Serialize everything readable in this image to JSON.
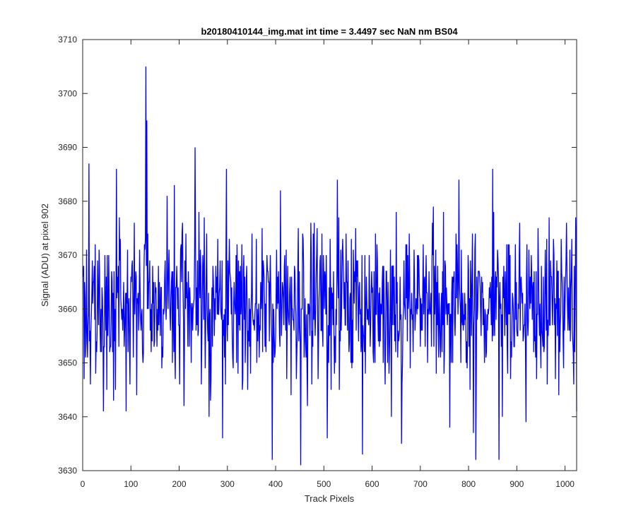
{
  "chart_data": {
    "type": "line",
    "title": "b20180410144_img.mat int time = 3.4497 sec  NaN nm BS04",
    "xlabel": "Track Pixels",
    "ylabel": "Signal (ADU) at pixel 902",
    "xlim": [
      0,
      1024
    ],
    "ylim": [
      3630,
      3710
    ],
    "xticks": [
      0,
      100,
      200,
      300,
      400,
      500,
      600,
      700,
      800,
      900,
      1000
    ],
    "yticks": [
      3630,
      3640,
      3650,
      3660,
      3670,
      3680,
      3690,
      3700,
      3710
    ],
    "grid": false,
    "series": [
      {
        "color": "#0000ff",
        "x_start": 1,
        "x_step": 1,
        "noise_baseline": 3661,
        "noise_amplitude": 7,
        "n_points": 1024,
        "notable_points": [
          {
            "x": 10,
            "y": 3651
          },
          {
            "x": 13,
            "y": 3687
          },
          {
            "x": 43,
            "y": 3641
          },
          {
            "x": 50,
            "y": 3645
          },
          {
            "x": 70,
            "y": 3686
          },
          {
            "x": 90,
            "y": 3641
          },
          {
            "x": 112,
            "y": 3644
          },
          {
            "x": 131,
            "y": 3705
          },
          {
            "x": 133,
            "y": 3695
          },
          {
            "x": 190,
            "y": 3683
          },
          {
            "x": 192,
            "y": 3647
          },
          {
            "x": 210,
            "y": 3642
          },
          {
            "x": 262,
            "y": 3640
          },
          {
            "x": 290,
            "y": 3636
          },
          {
            "x": 337,
            "y": 3650
          },
          {
            "x": 393,
            "y": 3632
          },
          {
            "x": 410,
            "y": 3682
          },
          {
            "x": 432,
            "y": 3644
          },
          {
            "x": 452,
            "y": 3631
          },
          {
            "x": 475,
            "y": 3646
          },
          {
            "x": 507,
            "y": 3636
          },
          {
            "x": 580,
            "y": 3633
          },
          {
            "x": 640,
            "y": 3640
          },
          {
            "x": 650,
            "y": 3678
          },
          {
            "x": 780,
            "y": 3684
          },
          {
            "x": 810,
            "y": 3637
          },
          {
            "x": 815,
            "y": 3632
          },
          {
            "x": 850,
            "y": 3686
          },
          {
            "x": 863,
            "y": 3632
          },
          {
            "x": 870,
            "y": 3640
          },
          {
            "x": 1018,
            "y": 3646
          },
          {
            "x": 1022,
            "y": 3677
          }
        ]
      }
    ]
  }
}
